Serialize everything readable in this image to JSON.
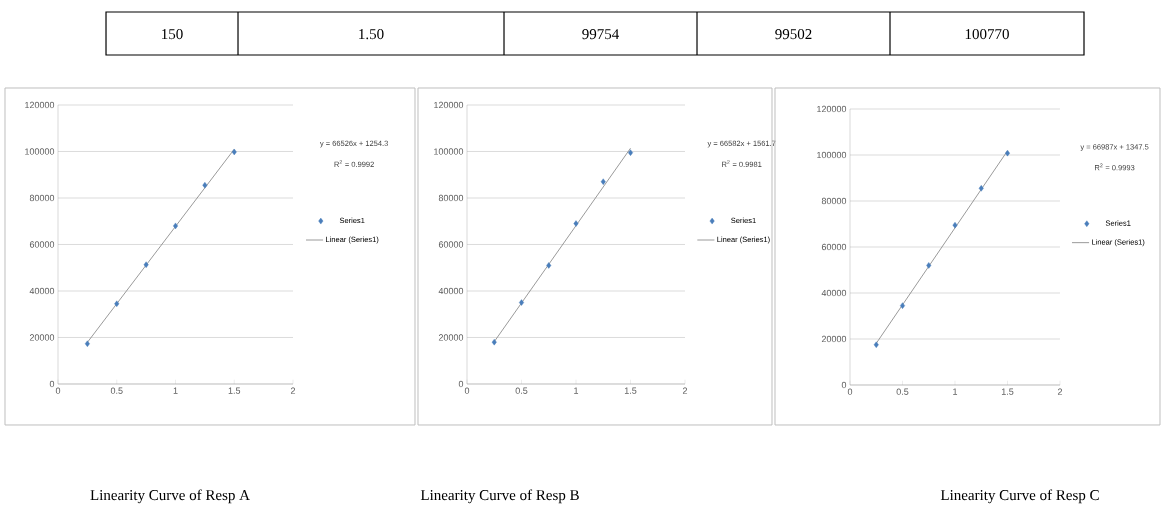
{
  "chart_data": [
    {
      "type": "other",
      "annotations": [
        "150",
        "1.50",
        "99754",
        "99502",
        "100770"
      ]
    },
    {
      "type": "scatter",
      "title": "Linearity Curve of Resp A",
      "xlim": [
        0,
        2
      ],
      "xticks": [
        0,
        0.5,
        1,
        1.5,
        2
      ],
      "ylim": [
        0,
        120000
      ],
      "yticks": [
        0,
        20000,
        40000,
        60000,
        80000,
        100000,
        120000
      ],
      "grid": "y",
      "legend": "right",
      "annotations": [
        "y = 66526x + 1254.3",
        "R$^{2}$ = 0.9992"
      ],
      "series": [
        {
          "name": "Series1",
          "type": "scatter",
          "marker": "diamond",
          "color": "#4a7ebb",
          "x": [
            0.25,
            0.5,
            0.75,
            1,
            1.25,
            1.5
          ],
          "values": [
            17300,
            34500,
            51300,
            68000,
            85500,
            99800
          ]
        },
        {
          "name": "Linear (Series1)",
          "type": "line",
          "marker": "none",
          "color": "#808080",
          "x": [
            0.25,
            1.5
          ],
          "values": [
            17900,
            101000
          ]
        }
      ]
    },
    {
      "type": "scatter",
      "title": "Linearity Curve of Resp B",
      "xlim": [
        0,
        2
      ],
      "xticks": [
        0,
        0.5,
        1,
        1.5,
        2
      ],
      "ylim": [
        0,
        120000
      ],
      "yticks": [
        0,
        20000,
        40000,
        60000,
        80000,
        100000,
        120000
      ],
      "grid": "y",
      "legend": "right",
      "annotations": [
        "y = 66582x + 1561.7",
        "R$^{2}$ = 0.9981"
      ],
      "series": [
        {
          "name": "Series1",
          "type": "scatter",
          "marker": "diamond",
          "color": "#4a7ebb",
          "x": [
            0.25,
            0.5,
            0.75,
            1,
            1.25,
            1.5
          ],
          "values": [
            18000,
            35000,
            51000,
            69000,
            87000,
            99500
          ]
        },
        {
          "name": "Linear (Series1)",
          "type": "line",
          "marker": "none",
          "color": "#808080",
          "x": [
            0.25,
            1.5
          ],
          "values": [
            18200,
            101400
          ]
        }
      ]
    },
    {
      "type": "scatter",
      "title": "Linearity Curve of Resp C",
      "xlim": [
        0,
        2
      ],
      "xticks": [
        0,
        0.5,
        1,
        1.5,
        2
      ],
      "ylim": [
        0,
        120000
      ],
      "yticks": [
        0,
        20000,
        40000,
        60000,
        80000,
        100000,
        120000
      ],
      "grid": "y",
      "legend": "right",
      "annotations": [
        "y = 66987x + 1347.5",
        "R$^{2}$ = 0.9993"
      ],
      "series": [
        {
          "name": "Series1",
          "type": "scatter",
          "marker": "diamond",
          "color": "#4a7ebb",
          "x": [
            0.25,
            0.5,
            0.75,
            1,
            1.25,
            1.5
          ],
          "values": [
            17500,
            34500,
            52000,
            69500,
            85500,
            100800
          ]
        },
        {
          "name": "Linear (Series1)",
          "type": "line",
          "marker": "none",
          "color": "#808080",
          "x": [
            0.25,
            1.5
          ],
          "values": [
            18100,
            101800
          ]
        }
      ]
    }
  ]
}
